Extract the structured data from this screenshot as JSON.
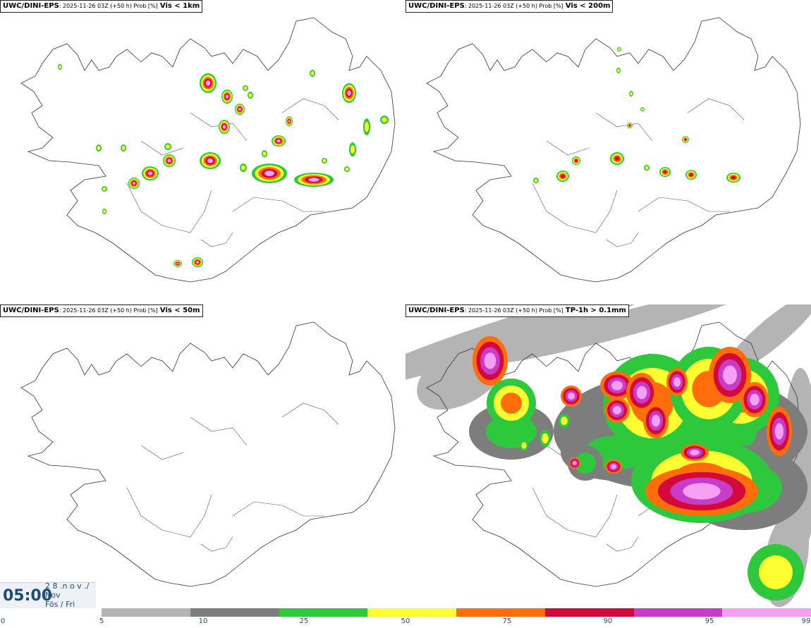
{
  "panels": [
    {
      "model": "UWC/DINI-EPS",
      "meta": ": 2025-11-26 03Z (+50 h) Prob [%]",
      "threshold": "Vis < 1km"
    },
    {
      "model": "UWC/DINI-EPS",
      "meta": ": 2025-11-26 03Z (+50 h) Prob [%]",
      "threshold": "Vis < 200m"
    },
    {
      "model": "UWC/DINI-EPS",
      "meta": ": 2025-11-26 03Z (+50 h) Prob [%]",
      "threshold": "Vis < 50m"
    },
    {
      "model": "UWC/DINI-EPS",
      "meta": ": 2025-11-26 03Z (+50 h) Prob [%]",
      "threshold": "TP-1h > 0.1mm"
    }
  ],
  "valid_time": {
    "time": "05:00",
    "date": "2 8 .n o v ./",
    "month": "Nov",
    "weekday": "Fös / Fri"
  },
  "legend": {
    "ticks": [
      "0",
      "5",
      "10",
      "25",
      "50",
      "75",
      "90",
      "95",
      "99"
    ],
    "bins": [
      {
        "range": "5-10",
        "color": "#b4b4b4"
      },
      {
        "range": "10-25",
        "color": "#7d7d7d"
      },
      {
        "range": "25-50",
        "color": "#2dc83c"
      },
      {
        "range": "50-75",
        "color": "#ffff32"
      },
      {
        "range": "75-90",
        "color": "#ff6e0a"
      },
      {
        "range": "90-95",
        "color": "#d20a3c"
      },
      {
        "range": "95-99",
        "color": "#c83cc8"
      },
      {
        "range": "99-100",
        "color": "#f5a0f5"
      }
    ]
  }
}
